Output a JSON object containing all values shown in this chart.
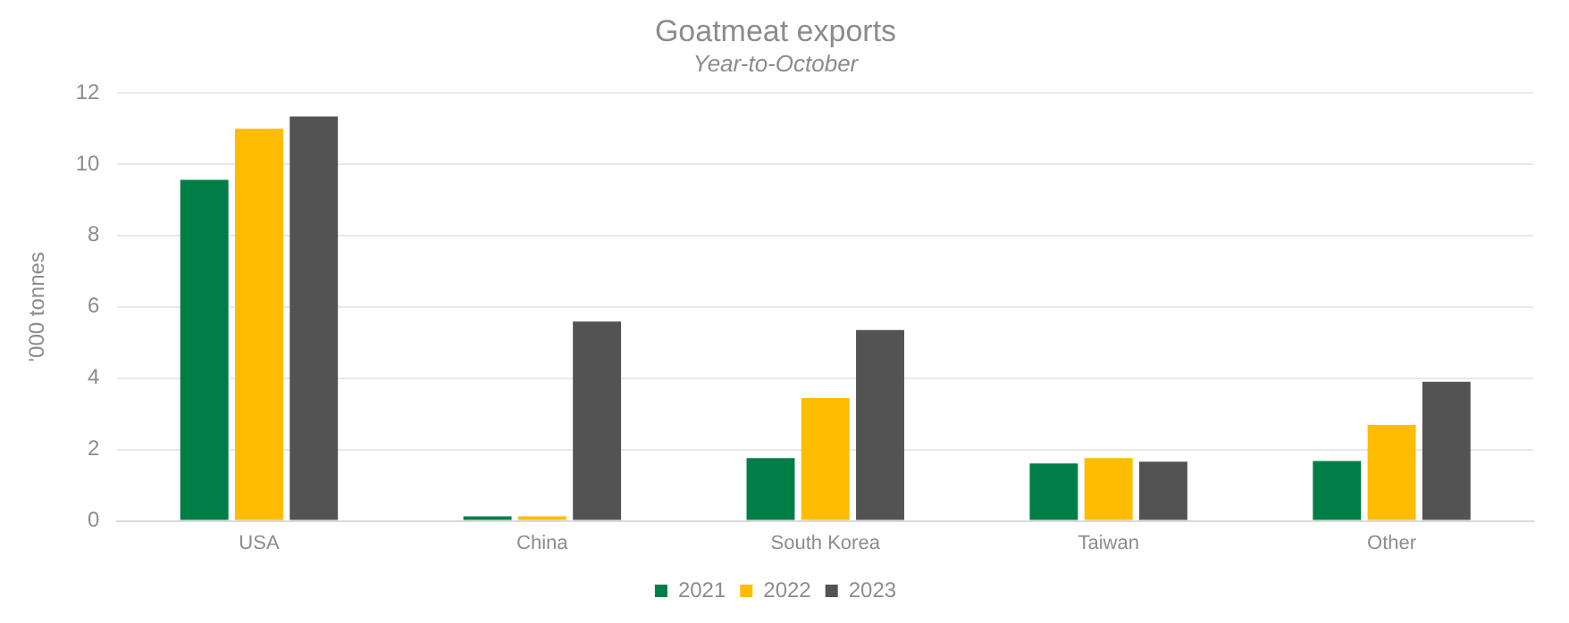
{
  "chart_data": {
    "type": "bar",
    "title": "Goatmeat exports",
    "subtitle": "Year-to-October",
    "ylabel": "'000 tonnes",
    "categories": [
      "USA",
      "China",
      "South Korea",
      "Taiwan",
      "Other"
    ],
    "series": [
      {
        "name": "2021",
        "color": "#007e47",
        "values": [
          9.56,
          0.13,
          1.76,
          1.61,
          1.68
        ]
      },
      {
        "name": "2022",
        "color": "#ffbc00",
        "values": [
          10.99,
          0.13,
          3.44,
          1.76,
          2.69
        ]
      },
      {
        "name": "2023",
        "color": "#535353",
        "values": [
          11.34,
          5.59,
          5.35,
          1.66,
          3.9
        ]
      }
    ],
    "ylim": [
      0,
      12
    ],
    "yticks": [
      0,
      2,
      4,
      6,
      8,
      10,
      12
    ],
    "grid": "y",
    "legend": "bottom"
  }
}
